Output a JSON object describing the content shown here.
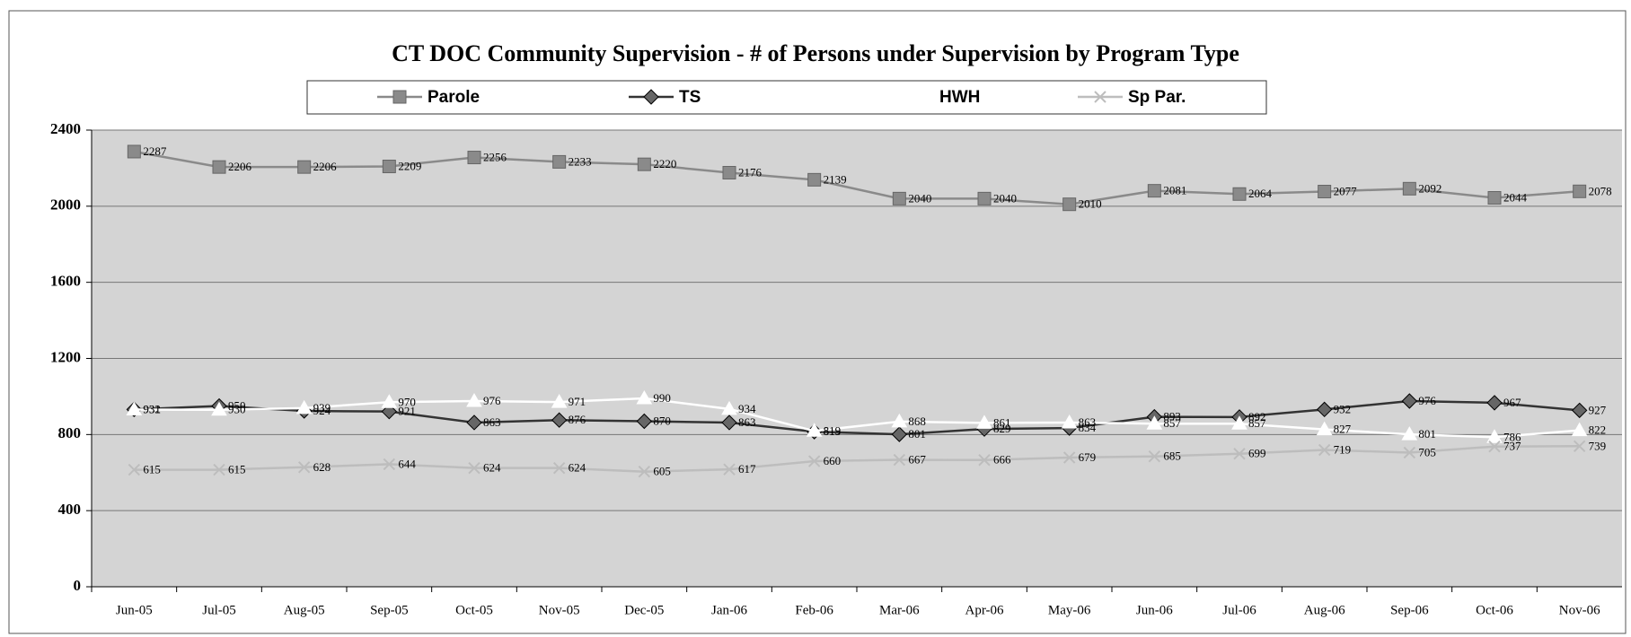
{
  "chart_data": {
    "type": "line",
    "title": "CT DOC Community Supervision - # of Persons under Supervision by Program Type",
    "categories": [
      "Jun-05",
      "Jul-05",
      "Aug-05",
      "Sep-05",
      "Oct-05",
      "Nov-05",
      "Dec-05",
      "Jan-06",
      "Feb-06",
      "Mar-06",
      "Apr-06",
      "May-06",
      "Jun-06",
      "Jul-06",
      "Aug-06",
      "Sep-06",
      "Oct-06",
      "Nov-06"
    ],
    "series": [
      {
        "name": "Parole",
        "color": "#8a8a8a",
        "marker": "square",
        "values": [
          2287,
          2206,
          2206,
          2209,
          2256,
          2233,
          2220,
          2176,
          2139,
          2040,
          2040,
          2010,
          2081,
          2064,
          2077,
          2092,
          2044,
          2078
        ]
      },
      {
        "name": "TS",
        "color": "#333333",
        "marker": "diamond",
        "values": [
          932,
          950,
          924,
          921,
          863,
          876,
          870,
          863,
          815,
          801,
          829,
          834,
          893,
          892,
          932,
          976,
          967,
          927
        ]
      },
      {
        "name": "HWH",
        "color": "#ffffff",
        "marker": "triangle",
        "values": [
          931,
          930,
          939,
          970,
          976,
          971,
          990,
          934,
          819,
          868,
          861,
          863,
          857,
          857,
          827,
          801,
          786,
          822
        ]
      },
      {
        "name": "Sp Par.",
        "color": "#bdbdbd",
        "marker": "x",
        "values": [
          615,
          615,
          628,
          644,
          624,
          624,
          605,
          617,
          660,
          667,
          666,
          679,
          685,
          699,
          719,
          705,
          737,
          739
        ]
      }
    ],
    "ylim": [
      0,
      2400
    ],
    "yticks": [
      0,
      400,
      800,
      1200,
      1600,
      2000,
      2400
    ],
    "grid": true
  }
}
